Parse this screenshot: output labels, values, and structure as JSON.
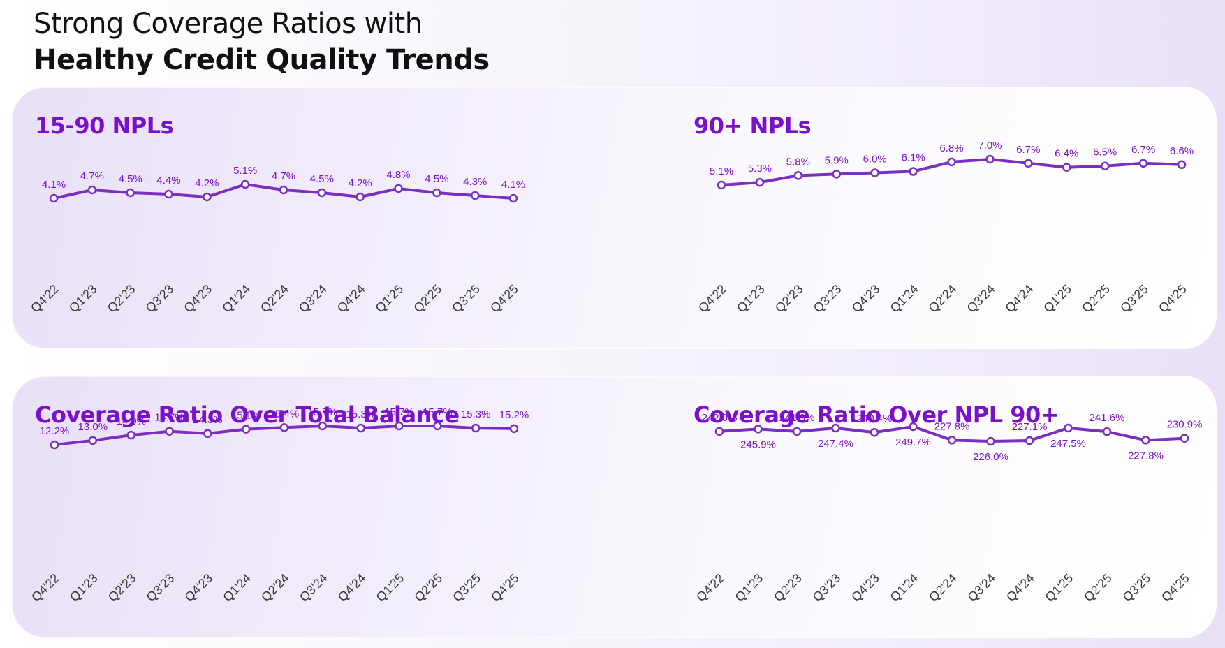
{
  "title": {
    "line1": "Strong Coverage Ratios with",
    "line2": "Healthy Credit Quality Trends"
  },
  "colors": {
    "line": "#7a2fc0",
    "marker_fill": "#ffffff",
    "label": "#7a10c9",
    "title": "#7a10c9",
    "tick": "#3a3a3a"
  },
  "chart_data": [
    {
      "type": "line",
      "title": "15-90 NPLs",
      "categories": [
        "Q4'22",
        "Q1'23",
        "Q2'23",
        "Q3'23",
        "Q4'23",
        "Q1'24",
        "Q2'24",
        "Q3'24",
        "Q4'24",
        "Q1'25",
        "Q2'25",
        "Q3'25",
        "Q4'25"
      ],
      "values": [
        4.1,
        4.7,
        4.5,
        4.4,
        4.2,
        5.1,
        4.7,
        4.5,
        4.2,
        4.8,
        4.5,
        4.3,
        4.1
      ],
      "labels": [
        "4.1%",
        "4.7%",
        "4.5%",
        "4.4%",
        "4.2%",
        "5.1%",
        "4.7%",
        "4.5%",
        "4.2%",
        "4.8%",
        "4.5%",
        "4.3%",
        "4.1%"
      ],
      "label_position": [
        "above",
        "above",
        "above",
        "above",
        "above",
        "above",
        "above",
        "above",
        "above",
        "above",
        "above",
        "above",
        "above"
      ],
      "ylim": [
        4.1,
        5.1
      ],
      "grid": false
    },
    {
      "type": "line",
      "title": "90+ NPLs",
      "categories": [
        "Q4'22",
        "Q1'23",
        "Q2'23",
        "Q3'23",
        "Q4'23",
        "Q1'24",
        "Q2'24",
        "Q3'24",
        "Q4'24",
        "Q1'25",
        "Q2'25",
        "Q3'25",
        "Q4'25"
      ],
      "values": [
        5.1,
        5.3,
        5.8,
        5.9,
        6.0,
        6.1,
        6.8,
        7.0,
        6.7,
        6.4,
        6.5,
        6.7,
        6.6
      ],
      "labels": [
        "5.1%",
        "5.3%",
        "5.8%",
        "5.9%",
        "6.0%",
        "6.1%",
        "6.8%",
        "7.0%",
        "6.7%",
        "6.4%",
        "6.5%",
        "6.7%",
        "6.6%"
      ],
      "label_position": [
        "above",
        "above",
        "above",
        "above",
        "above",
        "above",
        "above",
        "above",
        "above",
        "above",
        "above",
        "above",
        "above"
      ],
      "ylim": [
        5.1,
        7.0
      ],
      "grid": false
    },
    {
      "type": "line",
      "title": "Coverage Ratio Over Total Balance",
      "categories": [
        "Q4'22",
        "Q1'23",
        "Q2'23",
        "Q3'23",
        "Q4'23",
        "Q1'24",
        "Q2'24",
        "Q3'24",
        "Q4'24",
        "Q1'25",
        "Q2'25",
        "Q3'25",
        "Q4'25"
      ],
      "values": [
        12.2,
        13.0,
        14.0,
        14.7,
        14.3,
        15.1,
        15.4,
        15.7,
        15.3,
        15.7,
        15.7,
        15.3,
        15.2
      ],
      "labels": [
        "12.2%",
        "13.0%",
        "14.0%",
        "14.7%",
        "14.3%",
        "15.1%",
        "15.4%",
        "15.7%",
        "15.3%",
        "15.7%",
        "15.7%",
        "15.3%",
        "15.2%"
      ],
      "label_position": [
        "above",
        "above",
        "above",
        "above",
        "above",
        "above",
        "above",
        "above",
        "above",
        "above",
        "above",
        "above",
        "above"
      ],
      "ylim": [
        12.2,
        15.7
      ],
      "grid": false
    },
    {
      "type": "line",
      "title": "Coverage Ratio Over NPL 90+",
      "categories": [
        "Q4'22",
        "Q1'23",
        "Q2'23",
        "Q3'23",
        "Q4'23",
        "Q1'24",
        "Q2'24",
        "Q3'24",
        "Q4'24",
        "Q1'25",
        "Q2'25",
        "Q3'25",
        "Q4'25"
      ],
      "values": [
        242.0,
        245.9,
        241.9,
        247.4,
        240.4,
        249.7,
        227.8,
        226.0,
        227.1,
        247.5,
        241.6,
        227.8,
        230.9
      ],
      "labels": [
        "242.0%",
        "245.9%",
        "241.9%",
        "247.4%",
        "240.4%",
        "249.7%",
        "227.8%",
        "226.0%",
        "227.1%",
        "247.5%",
        "241.6%",
        "227.8%",
        "230.9%"
      ],
      "label_position": [
        "above",
        "below",
        "above",
        "below",
        "above",
        "below",
        "above",
        "below",
        "above",
        "below",
        "above",
        "below",
        "above"
      ],
      "ylim": [
        226.0,
        249.7
      ],
      "grid": false
    }
  ]
}
